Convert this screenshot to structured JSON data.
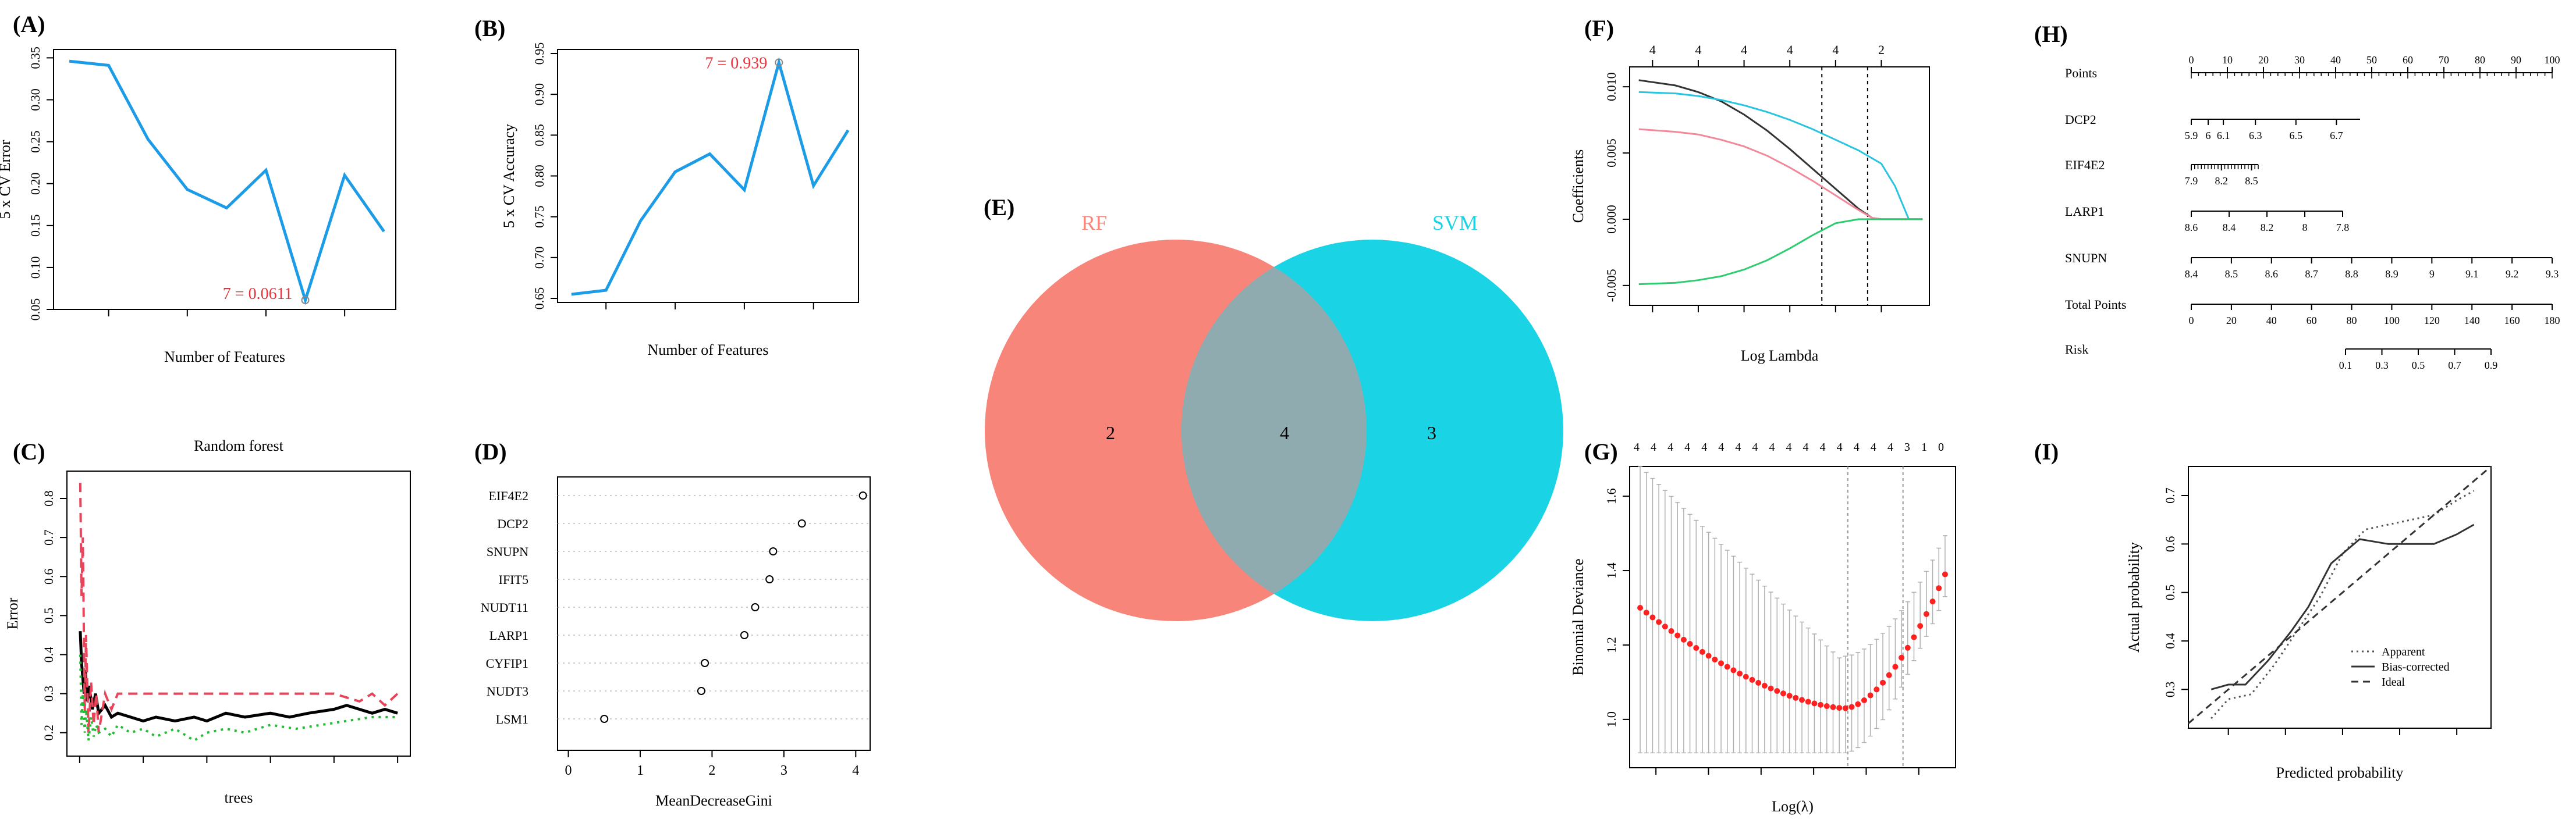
{
  "figure": {
    "panel_labels": [
      "(A)",
      "(B)",
      "(C)",
      "(D)",
      "(E)",
      "(F)",
      "(G)",
      "(H)",
      "(I)"
    ]
  },
  "chart_data": [
    {
      "panel": "(A)",
      "type": "line",
      "xlabel": "Number of Features",
      "ylabel": "5 x CV Error",
      "x": [
        1,
        2,
        3,
        4,
        5,
        6,
        7,
        8,
        9
      ],
      "y": [
        0.346,
        0.341,
        0.253,
        0.193,
        0.171,
        0.216,
        0.0611,
        0.21,
        0.143
      ],
      "xticks": [
        2,
        4,
        6,
        8
      ],
      "yticks": [
        0.05,
        0.1,
        0.15,
        0.2,
        0.25,
        0.3,
        0.35
      ],
      "xlim": [
        0.6,
        9.3
      ],
      "ylim": [
        0.05,
        0.36
      ],
      "annotation": {
        "text": "7 = 0.0611",
        "x": 7,
        "y": 0.0611
      },
      "color": "#1c9be6"
    },
    {
      "panel": "(B)",
      "type": "line",
      "xlabel": "Number of Features",
      "ylabel": "5 x CV Accuracy",
      "x": [
        1,
        2,
        3,
        4,
        5,
        6,
        7,
        8,
        9
      ],
      "y": [
        0.655,
        0.66,
        0.745,
        0.805,
        0.827,
        0.783,
        0.939,
        0.788,
        0.856
      ],
      "xticks": [
        2,
        4,
        6,
        8
      ],
      "yticks": [
        0.65,
        0.7,
        0.75,
        0.8,
        0.85,
        0.9,
        0.95
      ],
      "xlim": [
        0.6,
        9.3
      ],
      "ylim": [
        0.645,
        0.955
      ],
      "annotation": {
        "text": "7 = 0.939",
        "x": 7,
        "y": 0.939
      },
      "color": "#1c9be6"
    },
    {
      "panel": "(C)",
      "type": "line",
      "title": "Random forest",
      "xlabel": "trees",
      "ylabel": "Error",
      "xticks": [
        0,
        100,
        200,
        300,
        400,
        500
      ],
      "yticks": [
        0.2,
        0.3,
        0.4,
        0.5,
        0.6,
        0.7,
        0.8
      ],
      "xlim": [
        -20,
        520
      ],
      "ylim": [
        0.14,
        0.87
      ],
      "series": [
        {
          "style": "solid",
          "color": "#000000",
          "x": [
            1,
            3,
            5,
            7,
            9,
            12,
            15,
            20,
            25,
            30,
            40,
            50,
            60,
            80,
            100,
            120,
            150,
            180,
            200,
            230,
            260,
            300,
            330,
            360,
            400,
            420,
            440,
            460,
            480,
            500
          ],
          "y": [
            0.46,
            0.38,
            0.34,
            0.3,
            0.36,
            0.28,
            0.32,
            0.26,
            0.3,
            0.25,
            0.27,
            0.24,
            0.25,
            0.24,
            0.23,
            0.24,
            0.23,
            0.24,
            0.23,
            0.25,
            0.24,
            0.25,
            0.24,
            0.25,
            0.26,
            0.27,
            0.26,
            0.25,
            0.26,
            0.25
          ]
        },
        {
          "style": "dashed",
          "color": "#e8445a",
          "x": [
            1,
            3,
            5,
            8,
            10,
            14,
            18,
            22,
            26,
            30,
            40,
            50,
            60,
            80,
            100,
            150,
            200,
            300,
            400,
            440,
            460,
            480,
            500
          ],
          "y": [
            0.84,
            0.55,
            0.7,
            0.25,
            0.45,
            0.2,
            0.33,
            0.22,
            0.3,
            0.2,
            0.3,
            0.26,
            0.3,
            0.3,
            0.3,
            0.3,
            0.3,
            0.3,
            0.3,
            0.28,
            0.3,
            0.27,
            0.3
          ]
        },
        {
          "style": "dotted",
          "color": "#22bb33",
          "x": [
            1,
            3,
            5,
            8,
            10,
            14,
            18,
            22,
            26,
            30,
            40,
            50,
            60,
            80,
            100,
            120,
            150,
            180,
            200,
            230,
            260,
            300,
            340,
            380,
            420,
            460,
            500
          ],
          "y": [
            0.4,
            0.22,
            0.3,
            0.2,
            0.26,
            0.18,
            0.24,
            0.19,
            0.22,
            0.2,
            0.21,
            0.19,
            0.22,
            0.2,
            0.21,
            0.19,
            0.21,
            0.18,
            0.2,
            0.21,
            0.2,
            0.22,
            0.21,
            0.22,
            0.23,
            0.24,
            0.24
          ]
        }
      ]
    },
    {
      "panel": "(D)",
      "type": "scatter",
      "xlabel": "MeanDecreaseGini",
      "categories": [
        "EIF4E2",
        "DCP2",
        "SNUPN",
        "IFIT5",
        "NUDT11",
        "LARP1",
        "CYFIP1",
        "NUDT3",
        "LSM1"
      ],
      "values": [
        4.1,
        3.25,
        2.85,
        2.8,
        2.6,
        2.45,
        1.9,
        1.85,
        0.5
      ],
      "xticks": [
        0,
        1,
        2,
        3,
        4
      ],
      "xlim": [
        -0.15,
        4.2
      ]
    },
    {
      "panel": "(E)",
      "type": "venn",
      "sets": [
        {
          "name": "RF",
          "color": "#f8857a",
          "only": 2
        },
        {
          "name": "SVM",
          "color": "#1ad4e6",
          "only": 3
        }
      ],
      "intersection": 4
    },
    {
      "panel": "(F)",
      "type": "line",
      "xlabel": "Log Lambda",
      "ylabel": "Coefficients",
      "top_ticks": [
        "4",
        "4",
        "4",
        "4",
        "4",
        "2"
      ],
      "top_tick_positions": [
        -7,
        -6,
        -5,
        -4,
        -3,
        -2
      ],
      "xticks": [
        -7,
        -6,
        -5,
        -4,
        -3,
        -2
      ],
      "yticks": [
        -0.005,
        0.0,
        0.005,
        0.01
      ],
      "ytick_labels": [
        "-0.005",
        "0.000",
        "0.005",
        "0.010"
      ],
      "xlim": [
        -7.5,
        -0.95
      ],
      "ylim": [
        -0.0065,
        0.0115
      ],
      "vlines": [
        -3.3,
        -2.3
      ],
      "series": [
        {
          "color": "#333333",
          "x": [
            -7.3,
            -6.5,
            -6,
            -5.5,
            -5,
            -4.5,
            -4,
            -3.5,
            -3,
            -2.5,
            -2.2,
            -2.0,
            -1.5,
            -1.1
          ],
          "y": [
            0.0105,
            0.0101,
            0.0096,
            0.0089,
            0.0079,
            0.0067,
            0.0053,
            0.0038,
            0.0023,
            0.0008,
            0.0001,
            0.0,
            0.0,
            0.0
          ]
        },
        {
          "color": "#28c4e0",
          "x": [
            -7.3,
            -6.5,
            -6,
            -5.5,
            -5,
            -4.5,
            -4,
            -3.5,
            -3,
            -2.5,
            -2.0,
            -1.7,
            -1.4,
            -1.1
          ],
          "y": [
            0.0096,
            0.0095,
            0.0093,
            0.009,
            0.0086,
            0.0081,
            0.0075,
            0.0068,
            0.006,
            0.0052,
            0.0042,
            0.0025,
            0.0,
            0.0
          ]
        },
        {
          "color": "#f08a9a",
          "x": [
            -7.3,
            -6.5,
            -6,
            -5.5,
            -5,
            -4.5,
            -4,
            -3.5,
            -3,
            -2.5,
            -2.2,
            -2.0,
            -1.5,
            -1.1
          ],
          "y": [
            0.0068,
            0.0066,
            0.0064,
            0.006,
            0.0055,
            0.0048,
            0.0039,
            0.0029,
            0.0018,
            0.0007,
            0.0001,
            0.0,
            0.0,
            0.0
          ]
        },
        {
          "color": "#2ecc71",
          "x": [
            -7.3,
            -6.5,
            -6,
            -5.5,
            -5,
            -4.5,
            -4,
            -3.5,
            -3,
            -2.5,
            -2.0,
            -1.5,
            -1.1
          ],
          "y": [
            -0.0049,
            -0.0048,
            -0.0046,
            -0.0043,
            -0.0038,
            -0.0031,
            -0.0022,
            -0.0012,
            -0.0003,
            0.0,
            0.0,
            0.0,
            0.0
          ]
        }
      ]
    },
    {
      "panel": "(G)",
      "type": "scatter",
      "xlabel": "Log(λ)",
      "ylabel": "Binomial Deviance",
      "top_ticks": [
        "4",
        "4",
        "4",
        "4",
        "4",
        "4",
        "4",
        "4",
        "4",
        "4",
        "4",
        "4",
        "4",
        "4",
        "4",
        "4",
        "3",
        "1",
        "0"
      ],
      "xticks": [
        -7,
        -6,
        -5,
        -4,
        -3,
        -2
      ],
      "yticks": [
        1.0,
        1.2,
        1.4,
        1.6
      ],
      "xlim": [
        -7.5,
        -1.3
      ],
      "ylim": [
        0.87,
        1.68
      ],
      "vlines": [
        -3.35,
        -2.3
      ],
      "points": {
        "start": -7.3,
        "end": -1.5,
        "count": 50,
        "min_x": -3.4,
        "min_y": 1.03,
        "start_y": 1.3,
        "end_y": 1.39
      },
      "error_bar": {
        "upper_start": 1.68,
        "lower_start": 0.91,
        "upper_min": 1.15,
        "lower_min": 0.91
      },
      "color": "#ff2020"
    },
    {
      "panel": "(H)",
      "type": "table",
      "rows": [
        {
          "label": "Points",
          "ticks": [
            "0",
            "10",
            "20",
            "30",
            "40",
            "50",
            "60",
            "70",
            "80",
            "90",
            "100"
          ]
        },
        {
          "label": "DCP2",
          "ticks": [
            "5.9",
            "6",
            "6.1",
            "6.3",
            "6.5",
            "6.7"
          ]
        },
        {
          "label": "EIF4E2",
          "ticks": [
            "7.9",
            "8.2",
            "8.5"
          ]
        },
        {
          "label": "LARP1",
          "ticks": [
            "8.6",
            "8.4",
            "8.2",
            "8",
            "7.8"
          ]
        },
        {
          "label": "SNUPN",
          "ticks": [
            "8.4",
            "8.5",
            "8.6",
            "8.7",
            "8.8",
            "8.9",
            "9",
            "9.1",
            "9.2",
            "9.3"
          ]
        },
        {
          "label": "Total Points",
          "ticks": [
            "0",
            "20",
            "40",
            "60",
            "80",
            "100",
            "120",
            "140",
            "160",
            "180"
          ]
        },
        {
          "label": "Risk",
          "ticks": [
            "0.1",
            "0.3",
            "0.5",
            "0.7",
            "0.9"
          ]
        }
      ]
    },
    {
      "panel": "(I)",
      "type": "line",
      "xlabel": "Predicted probability",
      "ylabel": "Actual probability",
      "xticks": [
        0.3,
        0.4,
        0.5,
        0.6,
        0.7
      ],
      "yticks": [
        0.3,
        0.4,
        0.5,
        0.6,
        0.7
      ],
      "xlim": [
        0.23,
        0.76
      ],
      "ylim": [
        0.22,
        0.76
      ],
      "legend": [
        "Apparent",
        "Bias-corrected",
        "Ideal"
      ],
      "legend_position": "bottom-right",
      "series": [
        {
          "name": "Apparent",
          "style": "dotted",
          "x": [
            0.27,
            0.3,
            0.34,
            0.38,
            0.42,
            0.46,
            0.5,
            0.54,
            0.58,
            0.62,
            0.66,
            0.7,
            0.73
          ],
          "y": [
            0.24,
            0.28,
            0.29,
            0.35,
            0.42,
            0.49,
            0.58,
            0.63,
            0.64,
            0.65,
            0.66,
            0.69,
            0.71
          ]
        },
        {
          "name": "Bias-corrected",
          "style": "solid",
          "x": [
            0.27,
            0.3,
            0.33,
            0.37,
            0.41,
            0.44,
            0.48,
            0.53,
            0.58,
            0.62,
            0.66,
            0.7,
            0.73
          ],
          "y": [
            0.3,
            0.31,
            0.31,
            0.36,
            0.42,
            0.47,
            0.56,
            0.61,
            0.6,
            0.6,
            0.6,
            0.62,
            0.64
          ]
        },
        {
          "name": "Ideal",
          "style": "dashed",
          "x": [
            0.23,
            0.76
          ],
          "y": [
            0.23,
            0.76
          ]
        }
      ]
    }
  ]
}
